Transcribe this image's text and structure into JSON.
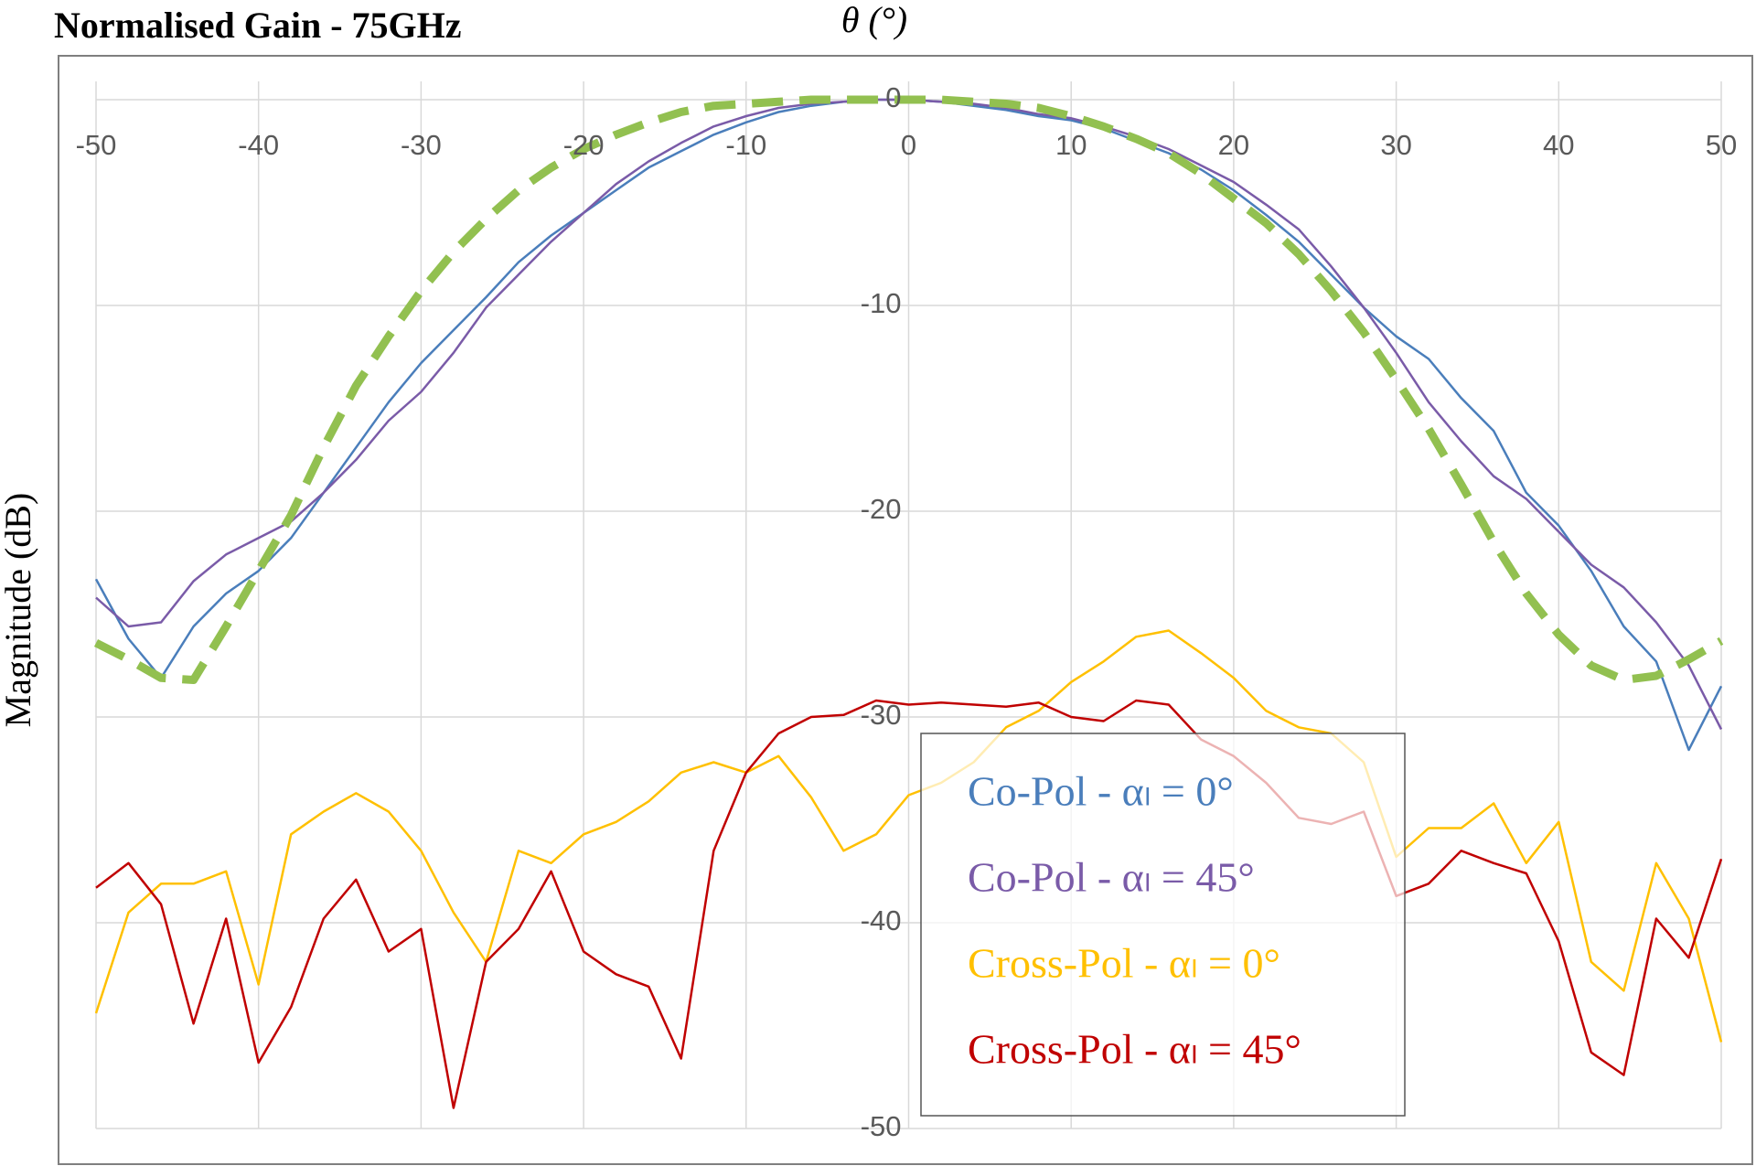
{
  "chart_data": {
    "type": "line",
    "title": "Normalised Gain - 75GHz",
    "x_label": "θ (°)",
    "y_label": "Magnitude (dB)",
    "x": [
      -50,
      -48,
      -46,
      -44,
      -42,
      -40,
      -38,
      -36,
      -34,
      -32,
      -30,
      -28,
      -26,
      -24,
      -22,
      -20,
      -18,
      -16,
      -14,
      -12,
      -10,
      -8,
      -6,
      -4,
      -2,
      0,
      2,
      4,
      6,
      8,
      10,
      12,
      14,
      16,
      18,
      20,
      22,
      24,
      26,
      28,
      30,
      32,
      34,
      36,
      38,
      40,
      42,
      44,
      46,
      48,
      50
    ],
    "xlim": [
      -50,
      50
    ],
    "xticks": [
      -50,
      -40,
      -30,
      -20,
      -10,
      0,
      10,
      20,
      30,
      40,
      50
    ],
    "ylim": [
      -50,
      0
    ],
    "yticks": [
      0,
      -10,
      -20,
      -30,
      -40,
      -50
    ],
    "grid": true,
    "series": [
      {
        "name": "Co-Pol - αₗ = 0°",
        "color": "#4a7ebb",
        "width": 2.5,
        "values": [
          -23.3,
          -26.2,
          -28.1,
          -25.6,
          -24.0,
          -22.9,
          -21.3,
          -19.1,
          -16.9,
          -14.7,
          -12.8,
          -11.2,
          -9.6,
          -7.9,
          -6.6,
          -5.5,
          -4.4,
          -3.3,
          -2.5,
          -1.7,
          -1.1,
          -0.6,
          -0.3,
          -0.1,
          0,
          0,
          -0.1,
          -0.3,
          -0.5,
          -0.8,
          -1.0,
          -1.4,
          -2.0,
          -2.6,
          -3.4,
          -4.4,
          -5.6,
          -6.9,
          -8.5,
          -10.1,
          -11.5,
          -12.6,
          -14.5,
          -16.1,
          -19.1,
          -20.7,
          -22.9,
          -25.6,
          -27.3,
          -31.6,
          -28.5
        ]
      },
      {
        "name": "Co-Pol - αₗ = 45°",
        "color": "#7a5ba8",
        "width": 2.5,
        "values": [
          -24.2,
          -25.6,
          -25.4,
          -23.4,
          -22.1,
          -21.3,
          -20.5,
          -19.1,
          -17.5,
          -15.6,
          -14.2,
          -12.3,
          -10.1,
          -8.5,
          -6.9,
          -5.5,
          -4.1,
          -3.0,
          -2.1,
          -1.3,
          -0.8,
          -0.4,
          -0.2,
          -0.1,
          0,
          0,
          -0.1,
          -0.2,
          -0.4,
          -0.7,
          -0.9,
          -1.3,
          -1.8,
          -2.4,
          -3.2,
          -4.0,
          -5.1,
          -6.3,
          -8.1,
          -10.1,
          -12.3,
          -14.7,
          -16.6,
          -18.3,
          -19.4,
          -21.0,
          -22.6,
          -23.7,
          -25.4,
          -27.5,
          -30.6
        ]
      },
      {
        "name": "Cross-Pol - αₗ = 0°",
        "color": "#ffc000",
        "width": 2.5,
        "values": [
          -44.4,
          -39.5,
          -38.1,
          -38.1,
          -37.5,
          -43.0,
          -35.7,
          -34.6,
          -33.7,
          -34.6,
          -36.5,
          -39.5,
          -41.9,
          -36.5,
          -37.1,
          -35.7,
          -35.1,
          -34.1,
          -32.7,
          -32.2,
          -32.7,
          -31.9,
          -33.9,
          -36.5,
          -35.7,
          -33.8,
          -33.2,
          -32.2,
          -30.5,
          -29.7,
          -28.3,
          -27.3,
          -26.1,
          -25.8,
          -26.9,
          -28.1,
          -29.7,
          -30.5,
          -30.8,
          -32.2,
          -36.8,
          -35.4,
          -35.4,
          -34.2,
          -37.1,
          -35.1,
          -41.9,
          -43.3,
          -37.1,
          -39.8,
          -45.8
        ]
      },
      {
        "name": "Cross-Pol - αₗ = 45°",
        "color": "#c00000",
        "width": 2.5,
        "values": [
          -38.3,
          -37.1,
          -39.1,
          -44.9,
          -39.8,
          -46.8,
          -44.1,
          -39.8,
          -37.9,
          -41.4,
          -40.3,
          -49.0,
          -41.9,
          -40.3,
          -37.5,
          -41.4,
          -42.5,
          -43.1,
          -46.6,
          -36.5,
          -32.7,
          -30.8,
          -30.0,
          -29.9,
          -29.2,
          -29.4,
          -29.3,
          -29.4,
          -29.5,
          -29.3,
          -30.0,
          -30.2,
          -29.2,
          -29.4,
          -31.1,
          -31.9,
          -33.2,
          -34.9,
          -35.2,
          -34.6,
          -38.7,
          -38.1,
          -36.5,
          -37.1,
          -37.6,
          -40.9,
          -46.3,
          -47.4,
          -39.8,
          -41.7,
          -36.9
        ]
      },
      {
        "color": "#92c050",
        "width": 9,
        "dashed": true,
        "values": [
          -26.4,
          -27.2,
          -28.1,
          -28.2,
          -25.6,
          -22.9,
          -20.2,
          -16.9,
          -13.9,
          -11.5,
          -9.3,
          -7.4,
          -5.8,
          -4.4,
          -3.3,
          -2.4,
          -1.7,
          -1.1,
          -0.6,
          -0.3,
          -0.2,
          -0.1,
          0,
          0,
          0,
          0,
          0,
          -0.1,
          -0.2,
          -0.4,
          -0.8,
          -1.3,
          -1.9,
          -2.6,
          -3.6,
          -4.8,
          -6.0,
          -7.5,
          -9.3,
          -11.3,
          -13.6,
          -16.0,
          -18.7,
          -21.5,
          -24.0,
          -26.0,
          -27.5,
          -28.2,
          -28.0,
          -27.2,
          -26.3
        ]
      }
    ]
  }
}
